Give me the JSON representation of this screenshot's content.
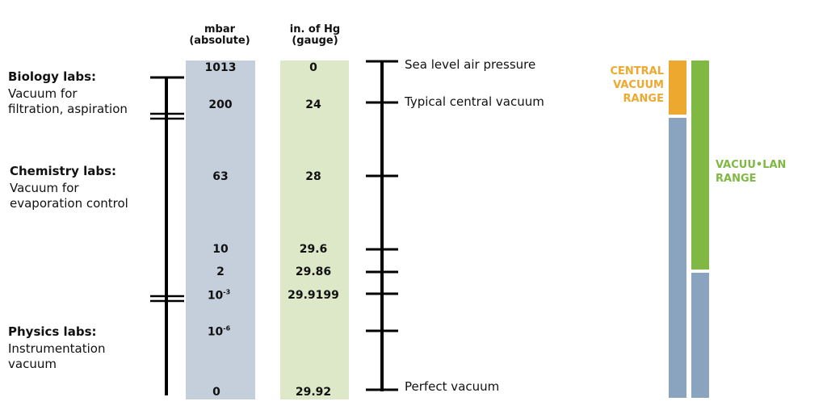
{
  "headers": {
    "mbar": [
      "mbar",
      "(absolute)"
    ],
    "inhg": [
      "in. of Hg",
      "(gauge)"
    ]
  },
  "rows": [
    {
      "mbar": "1013",
      "inhg": "0"
    },
    {
      "mbar": "200",
      "inhg": "24"
    },
    {
      "mbar": "63",
      "inhg": "28"
    },
    {
      "mbar": "10",
      "inhg": "29.6"
    },
    {
      "mbar": "2",
      "inhg": "29.86"
    },
    {
      "mbar_base": "10",
      "mbar_exp": "-3",
      "inhg": "29.9199"
    },
    {
      "mbar_base": "10",
      "mbar_exp": "-6",
      "inhg": ""
    },
    {
      "mbar": "0",
      "inhg": "29.92"
    }
  ],
  "labs": [
    {
      "title": "Biology labs:",
      "desc": [
        "Vacuum for",
        "filtration, aspiration"
      ]
    },
    {
      "title": "Chemistry labs:",
      "desc": [
        "Vacuum for",
        "evaporation control"
      ]
    },
    {
      "title": "Physics labs:",
      "desc": [
        "Instrumentation",
        "vacuum"
      ]
    }
  ],
  "scale_labels": {
    "sea_level": "Sea level air pressure",
    "central": "Typical central vacuum",
    "perfect": "Perfect vacuum"
  },
  "ranges": {
    "central": [
      "CENTRAL",
      "VACUUM",
      "RANGE"
    ],
    "vacuulan": [
      "VACUU•LAN",
      "RANGE"
    ]
  },
  "colors": {
    "mbar_column": "#c5cfdc",
    "inhg_column": "#dde8c8",
    "axis": "#000000",
    "central_range": "#eda92f",
    "vacuulan_range": "#7fb842",
    "steel": "#8aa3bf"
  }
}
